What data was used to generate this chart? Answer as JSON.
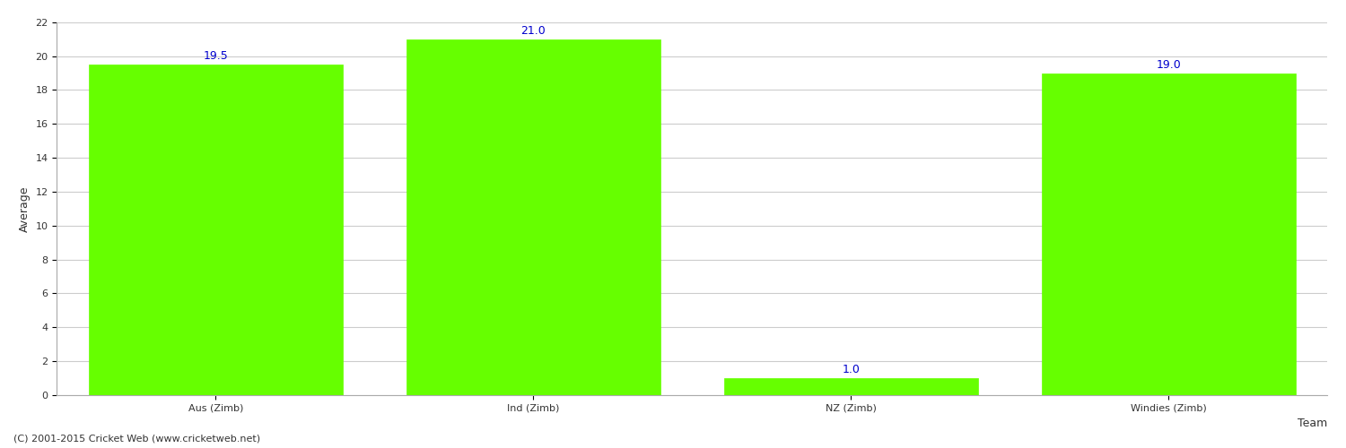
{
  "categories": [
    "Aus (Zimb)",
    "Ind (Zimb)",
    "NZ (Zimb)",
    "Windies (Zimb)"
  ],
  "values": [
    19.5,
    21.0,
    1.0,
    19.0
  ],
  "bar_color": "#66ff00",
  "bar_edge_color": "#66ff00",
  "value_label_color": "#0000cc",
  "value_label_fontsize": 9,
  "xlabel": "Team",
  "ylabel": "Average",
  "ylim": [
    0,
    22
  ],
  "yticks": [
    0,
    2,
    4,
    6,
    8,
    10,
    12,
    14,
    16,
    18,
    20,
    22
  ],
  "grid_color": "#cccccc",
  "grid_linewidth": 0.8,
  "background_color": "#ffffff",
  "bar_width": 0.8,
  "xlabel_fontsize": 9,
  "ylabel_fontsize": 9,
  "tick_fontsize": 8,
  "footer_text": "(C) 2001-2015 Cricket Web (www.cricketweb.net)",
  "footer_fontsize": 8,
  "footer_color": "#333333",
  "spine_color": "#aaaaaa"
}
